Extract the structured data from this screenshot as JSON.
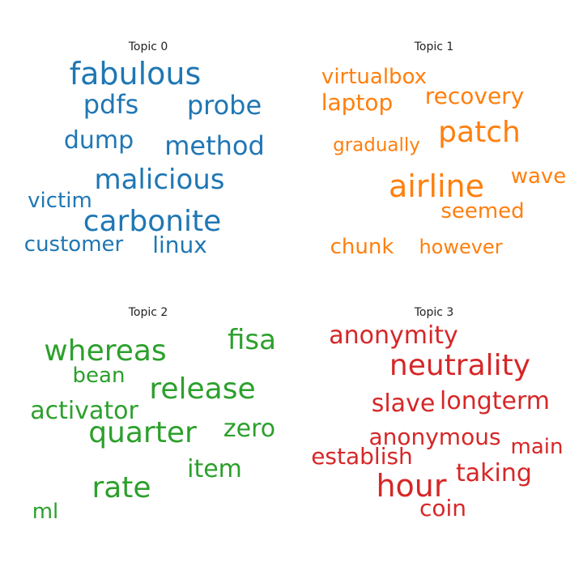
{
  "chart_data": {
    "type": "wordcloud",
    "panels": [
      {
        "title": "Topic 0",
        "color": "#1f77b4",
        "words": [
          "fabulous",
          "pdfs",
          "probe",
          "dump",
          "method",
          "malicious",
          "victim",
          "carbonite",
          "customer",
          "linux"
        ]
      },
      {
        "title": "Topic 1",
        "color": "#ff7f0e",
        "words": [
          "virtualbox",
          "laptop",
          "recovery",
          "patch",
          "gradually",
          "wave",
          "airline",
          "seemed",
          "chunk",
          "however"
        ]
      },
      {
        "title": "Topic 2",
        "color": "#2ca02c",
        "words": [
          "fisa",
          "whereas",
          "bean",
          "release",
          "activator",
          "quarter",
          "zero",
          "item",
          "rate",
          "ml"
        ]
      },
      {
        "title": "Topic 3",
        "color": "#d62728",
        "words": [
          "anonymity",
          "neutrality",
          "slave",
          "longterm",
          "anonymous",
          "establish",
          "main",
          "taking",
          "hour",
          "coin"
        ]
      }
    ]
  }
}
